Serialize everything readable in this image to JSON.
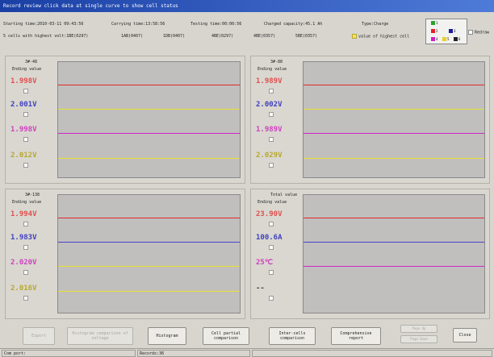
{
  "window": {
    "title": "Record review click data at single curve to show cell status"
  },
  "info": {
    "starting_time": "Starting time:2010-03-11 09:43:56",
    "carrying_time": "Carrying time:13:58:56",
    "testing_time": "Testing time:00:00:56",
    "charged_capacity": "Charged capacity:45.1 Ah",
    "type": "Type:Charge",
    "cells_highest": "5 cells with highest volt:1BE(0297)",
    "cells": [
      "1AB(0407)",
      "1DB(0407)",
      "4BE(0297)",
      "4BE(0357)",
      "5BE(0357)"
    ],
    "value_highest": "value of highest cell",
    "redraw": "Redraw"
  },
  "swatches": [
    {
      "label": "1",
      "color": "#2aa52a"
    },
    {
      "label": "2",
      "color": "#e0202a"
    },
    {
      "label": "3",
      "color": "#1a1aa0"
    },
    {
      "label": "4",
      "color": "#d020c0"
    },
    {
      "label": "5",
      "color": "#e8d020"
    },
    {
      "label": "6",
      "color": "#222222"
    }
  ],
  "panels": [
    {
      "title": "3#-48",
      "subtitle": "Ending value",
      "values": [
        {
          "text": "1.998V",
          "color": "#e05050"
        },
        {
          "text": "2.001V",
          "color": "#4040c0"
        },
        {
          "text": "1.998V",
          "color": "#d040c0"
        },
        {
          "text": "2.012V",
          "color": "#b8a830"
        }
      ],
      "traces": [
        "#e02828",
        "#e8e030",
        "#d028c8",
        "#e8e030"
      ]
    },
    {
      "title": "3#-88",
      "subtitle": "Ending value",
      "values": [
        {
          "text": "1.989V",
          "color": "#e05050"
        },
        {
          "text": "2.002V",
          "color": "#4040c0"
        },
        {
          "text": "1.989V",
          "color": "#d040c0"
        },
        {
          "text": "2.029V",
          "color": "#b8a830"
        }
      ],
      "traces": [
        "#e02828",
        "#e8e030",
        "#d028c8",
        "#e8e030"
      ]
    },
    {
      "title": "3#-138",
      "subtitle": "Ending value",
      "values": [
        {
          "text": "1.994V",
          "color": "#e05050"
        },
        {
          "text": "1.983V",
          "color": "#4040c0"
        },
        {
          "text": "2.020V",
          "color": "#d040c0"
        },
        {
          "text": "2.016V",
          "color": "#b8a830"
        }
      ],
      "traces": [
        "#e02828",
        "#4a44c8",
        "#e8e030",
        "#e8e030"
      ]
    },
    {
      "title": "Total value",
      "subtitle": "Ending value",
      "values": [
        {
          "text": "23.90V",
          "color": "#e05050"
        },
        {
          "text": "100.6A",
          "color": "#4040c0"
        },
        {
          "text": "25℃",
          "color": "#d040c0"
        },
        {
          "text": "--",
          "color": "#444444"
        }
      ],
      "traces": [
        "#e02828",
        "#4a44c8",
        "#d028c8"
      ]
    }
  ],
  "buttons": {
    "export": "Export",
    "histogram_compare": "Histogram comparison of voltage",
    "histogram": "Histogram",
    "cell_partial": "Cell partial comparison",
    "inter_cells": "Inter-cells comparison",
    "comprehensive": "Comprehensive report",
    "small_top": "Page Up",
    "small_bottom": "Page Down",
    "close": "Close"
  },
  "status": {
    "port": "Com port:",
    "records": "Records:36"
  }
}
